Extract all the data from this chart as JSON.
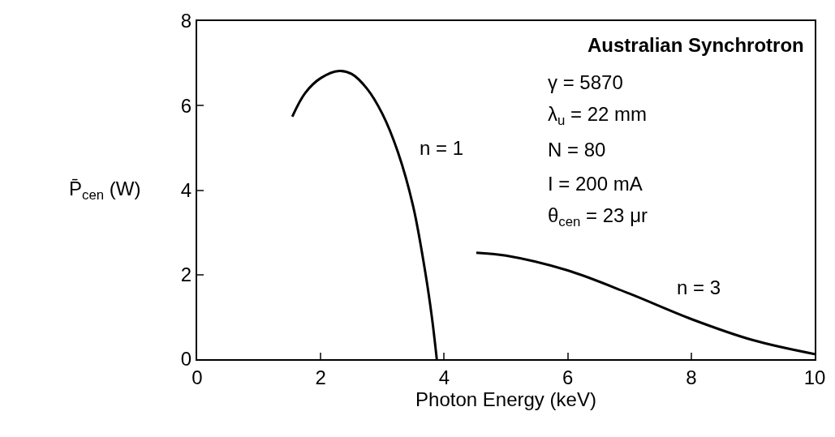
{
  "chart_data": {
    "type": "line",
    "xlabel": "Photon Energy (keV)",
    "ylabel": "P̄$_{cen}$ (W)",
    "series": [
      {
        "color": "#000000",
        "x": [
          1.54,
          1.75,
          2.0,
          2.3,
          2.5,
          2.75,
          3.0,
          3.25,
          3.5,
          3.7,
          3.8,
          3.88
        ],
        "values": [
          5.74,
          6.3,
          6.65,
          6.82,
          6.75,
          6.4,
          5.8,
          4.9,
          3.6,
          2.0,
          1.0,
          0
        ]
      },
      {
        "color": "#000000",
        "x": [
          4.52,
          5,
          6,
          7,
          8,
          9,
          10
        ],
        "values": [
          2.52,
          2.45,
          2.1,
          1.55,
          0.95,
          0.45,
          0.12
        ]
      }
    ],
    "xlim": [
      0,
      10
    ],
    "ylim": [
      0,
      8
    ],
    "xticks": [
      0,
      2,
      4,
      6,
      8,
      10
    ],
    "yticks": [
      0,
      2,
      4,
      6,
      8
    ],
    "marker": "none",
    "line_style": "solid",
    "annotations": [
      "n = 1",
      "n = 3",
      "Australian Synchrotron",
      "γ = 5870",
      "λ$_{u}$ = 22 mm",
      "N = 80",
      "I = 200 mA",
      "θ$_{cen}$ = 23 μr"
    ]
  }
}
